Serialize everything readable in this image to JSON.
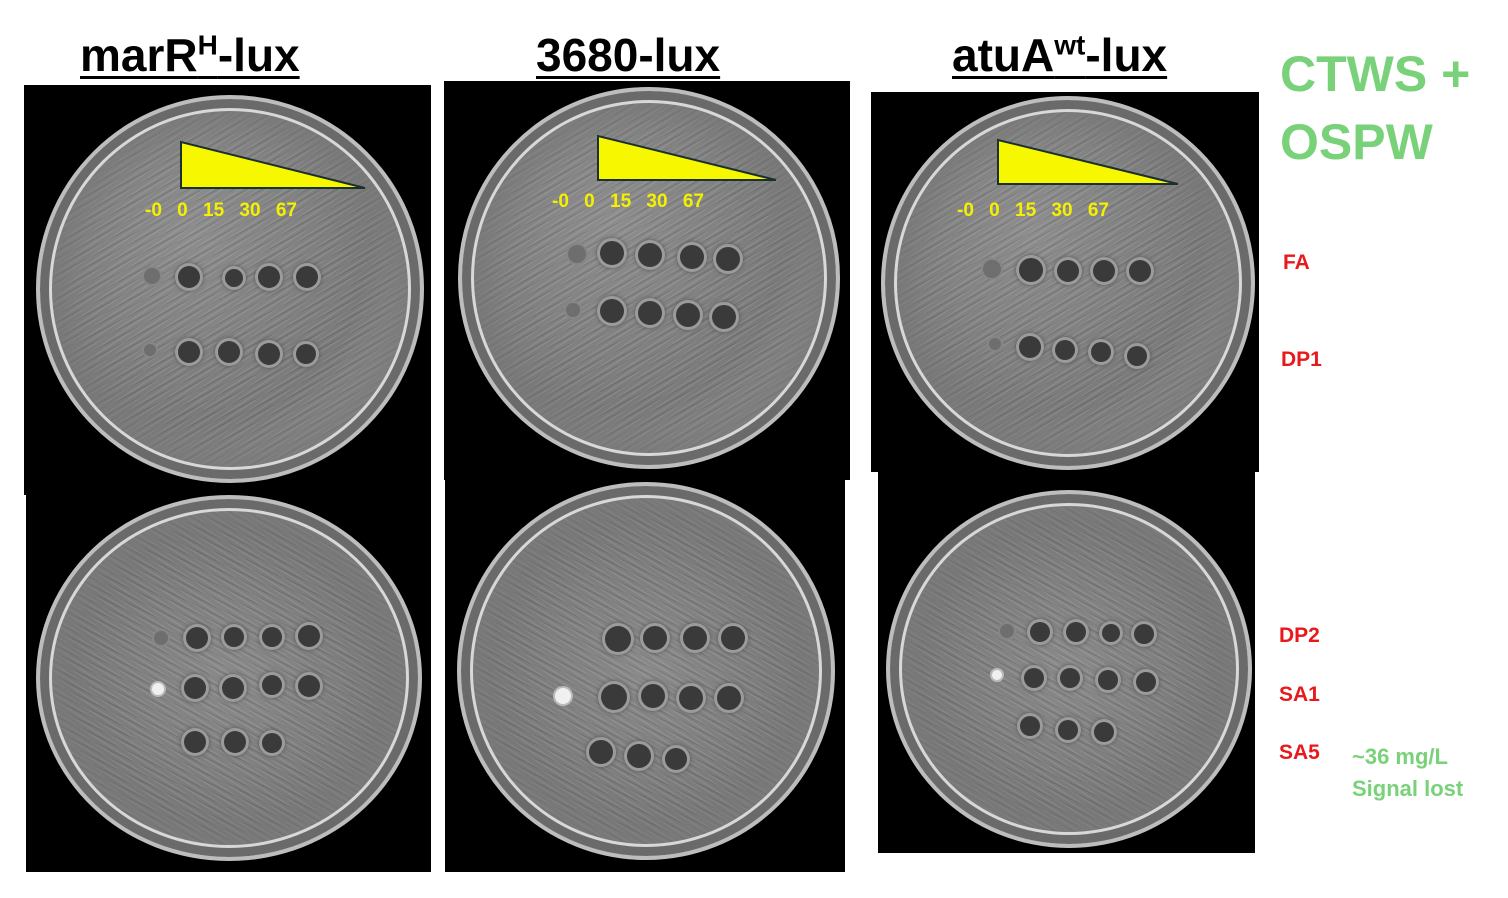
{
  "columns": [
    {
      "base": "marR",
      "sup": "H",
      "suffix": "-lux"
    },
    {
      "base": "3680-lux",
      "sup": "",
      "suffix": ""
    },
    {
      "base": "atuA",
      "sup": "wt",
      "suffix": "-lux"
    }
  ],
  "concentration_labels": "-0 0 15 30 67",
  "condition": {
    "line1": "CTWS +",
    "line2": "OSPW"
  },
  "row_labels": {
    "fa": "FA",
    "dp1": "DP1",
    "dp2": "DP2",
    "sa1": "SA1",
    "sa5": "SA5"
  },
  "note": {
    "line1": "~36 mg/L",
    "line2": "Signal lost"
  },
  "colors": {
    "wedge": "#f7f700",
    "row_label": "#e8191c",
    "green": "#79d27a"
  }
}
